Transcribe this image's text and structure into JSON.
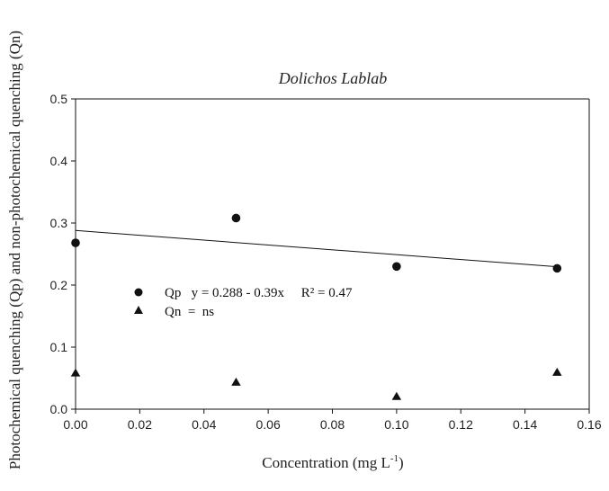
{
  "chart_data": {
    "type": "scatter",
    "title": "Dolichos Lablab",
    "xlabel": "Concentration (mg L",
    "xlabel_sup": "-1",
    "xlabel_end": ")",
    "ylabel": "Photochemical quenching (Qp) and non-photochemical quenching (Qn)",
    "xlim": [
      0.0,
      0.16
    ],
    "ylim": [
      0.0,
      0.5
    ],
    "x_ticks": [
      "0.00",
      "0.02",
      "0.04",
      "0.06",
      "0.08",
      "0.10",
      "0.12",
      "0.14",
      "0.16"
    ],
    "y_ticks": [
      "0.0",
      "0.1",
      "0.2",
      "0.3",
      "0.4",
      "0.5"
    ],
    "grid": false,
    "series": [
      {
        "name": "Qp",
        "marker": "circle",
        "color": "#111111",
        "x": [
          0.0,
          0.05,
          0.1,
          0.15
        ],
        "y": [
          0.268,
          0.308,
          0.23,
          0.227
        ],
        "fit": {
          "intercept": 0.288,
          "slope": -0.39
        }
      },
      {
        "name": "Qn",
        "marker": "triangle",
        "color": "#111111",
        "x": [
          0.0,
          0.05,
          0.1,
          0.15
        ],
        "y": [
          0.058,
          0.043,
          0.02,
          0.059
        ]
      }
    ],
    "legend": {
      "placement": "center-left",
      "entries": [
        {
          "series": "Qp",
          "text": "Qp   y = 0.288 - 0.39x     R² = 0.47"
        },
        {
          "series": "Qn",
          "text": "Qn  =  ns"
        }
      ]
    }
  }
}
